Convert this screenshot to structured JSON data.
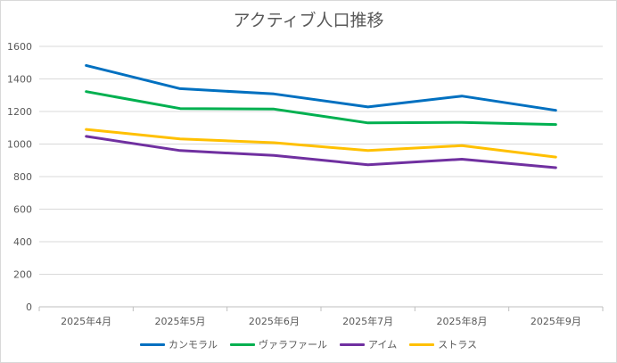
{
  "chart_data": {
    "type": "line",
    "title": "アクティブ人口推移",
    "xlabel": "",
    "ylabel": "",
    "categories": [
      "2025年4月",
      "2025年5月",
      "2025年6月",
      "2025年7月",
      "2025年8月",
      "2025年9月"
    ],
    "ylim": [
      0,
      1600
    ],
    "yticks": [
      0,
      200,
      400,
      600,
      800,
      1000,
      1200,
      1400,
      1600
    ],
    "ytick_labels": [
      "0",
      "200",
      "400",
      "600",
      "800",
      "1000",
      "1200",
      "1400",
      "1600"
    ],
    "grid": true,
    "legend_position": "bottom",
    "series": [
      {
        "name": "カンモラル",
        "color": "#0070C0",
        "values": [
          1483,
          1340,
          1308,
          1228,
          1295,
          1207
        ]
      },
      {
        "name": "ヴァラファール",
        "color": "#00B050",
        "values": [
          1322,
          1218,
          1215,
          1130,
          1133,
          1120
        ]
      },
      {
        "name": "アイム",
        "color": "#7030A0",
        "values": [
          1047,
          960,
          930,
          873,
          907,
          855
        ]
      },
      {
        "name": "ストラス",
        "color": "#FFC000",
        "values": [
          1090,
          1032,
          1008,
          960,
          990,
          920
        ]
      }
    ]
  }
}
